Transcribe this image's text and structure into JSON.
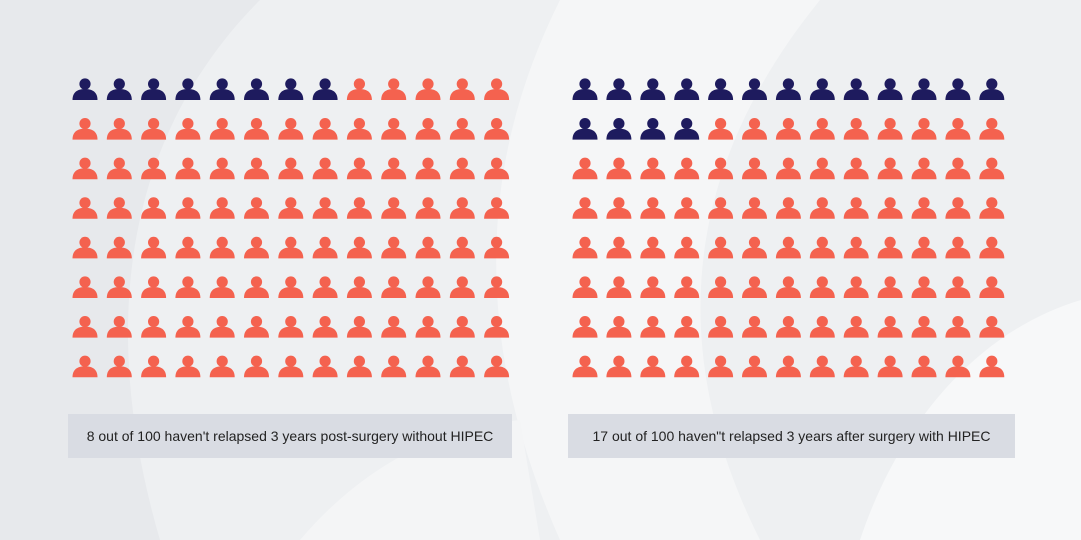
{
  "colors": {
    "highlight": "#1e1b5e",
    "base": "#f4624f",
    "caption_bg": "#d9dce3",
    "background": "#eef0f2"
  },
  "icon": "person-icon",
  "chart_data": [
    {
      "type": "pictogram",
      "rows": 8,
      "cols": 13,
      "total": 100,
      "highlighted": 8,
      "series": [
        {
          "value": 8,
          "color": "#1e1b5e"
        },
        {
          "value": 92,
          "color": "#f4624f"
        }
      ],
      "caption": "8 out of 100 haven't relapsed 3 years post-surgery without HIPEC"
    },
    {
      "type": "pictogram",
      "rows": 8,
      "cols": 13,
      "total": 100,
      "highlighted": 17,
      "series": [
        {
          "value": 17,
          "color": "#1e1b5e"
        },
        {
          "value": 83,
          "color": "#f4624f"
        }
      ],
      "caption": "17 out of 100 haven\"t relapsed 3 years after surgery with HIPEC"
    }
  ]
}
